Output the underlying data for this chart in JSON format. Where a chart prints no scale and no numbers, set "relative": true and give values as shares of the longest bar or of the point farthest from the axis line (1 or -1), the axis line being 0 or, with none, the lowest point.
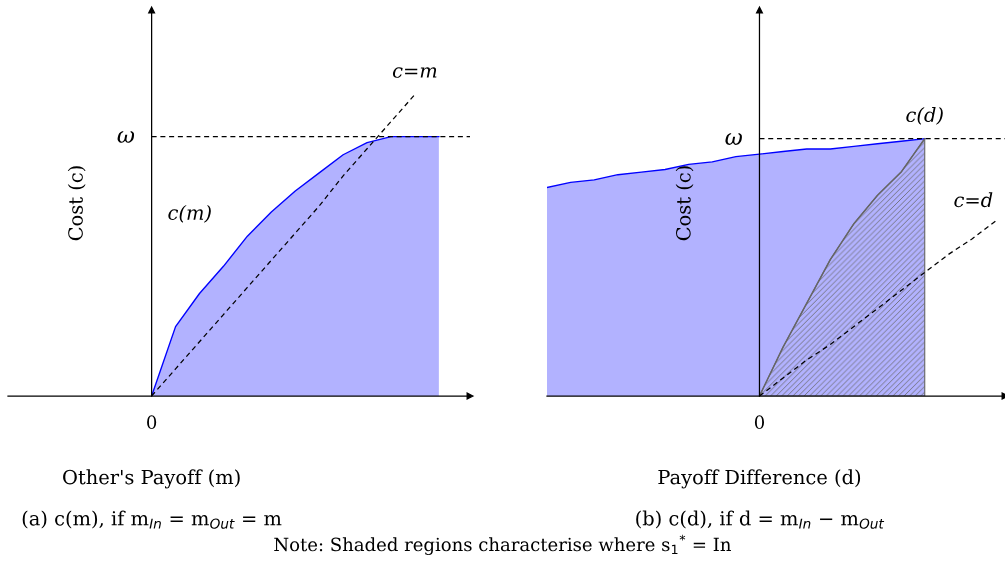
{
  "chart_data": [
    {
      "type": "area",
      "relative": true,
      "title": "(a) c(m), if m$_{In}$ = m$_{Out}$ = m",
      "xlabel": "Other's Payoff (m)",
      "ylabel": "Cost (c)",
      "categories": [
        null,
        null,
        null,
        null,
        null,
        null,
        null,
        null,
        null,
        null,
        null,
        null,
        null
      ],
      "series": [
        {
          "name": "c(m)",
          "color": "#0000ff",
          "values": [
            0,
            0.23,
            0.34,
            0.43,
            0.53,
            0.61,
            0.68,
            0.74,
            0.8,
            0.84,
            0.86,
            0.86,
            0.86
          ]
        },
        {
          "name": "c=m",
          "type": "line",
          "line_style": "dashed",
          "color": "#000000",
          "values": [
            0,
            0.09,
            0.18,
            0.27,
            0.36,
            0.45,
            0.54,
            0.63,
            0.73,
            0.82,
            0.91,
            1.0,
            null
          ]
        }
      ],
      "ref_lines": [
        {
          "axis": "y",
          "value": 0.86,
          "label": "ω",
          "color": "#000000",
          "line_style": "dashed"
        }
      ],
      "annotations": [
        "0",
        "Note: Shaded regions characterise where s$_{1}$$^{*}$ = In"
      ],
      "grid": false,
      "legend": false
    },
    {
      "type": "area",
      "relative": true,
      "title": "(b) c(d), if d = m$_{In}$ − m$_{Out}$",
      "xlabel": "Payoff Difference (d)",
      "ylabel": "Cost (c)",
      "categories": [
        null,
        null,
        null,
        null,
        null,
        null,
        null,
        null,
        null,
        null,
        null,
        null,
        null,
        null,
        null,
        null,
        null,
        null,
        null,
        null
      ],
      "series": [
        {
          "name": "c(d)",
          "color": "#0000ff",
          "values": [
            0.81,
            0.83,
            0.84,
            0.86,
            0.87,
            0.88,
            0.9,
            0.91,
            0.93,
            0.94,
            0.95,
            0.96,
            0.96,
            0.97,
            0.98,
            0.99,
            1.0,
            null,
            null,
            null
          ]
        },
        {
          "color": "#666666",
          "values": [
            null,
            null,
            null,
            null,
            null,
            null,
            null,
            null,
            null,
            0,
            0.19,
            0.36,
            0.53,
            0.67,
            0.78,
            0.87,
            1.0,
            null,
            null,
            null
          ]
        },
        {
          "name": "c=d",
          "type": "line",
          "line_style": "dashed",
          "color": "#000000",
          "values": [
            null,
            null,
            null,
            null,
            null,
            null,
            null,
            null,
            null,
            0,
            0.07,
            0.14,
            0.2,
            0.27,
            0.34,
            0.41,
            0.48,
            0.55,
            0.61,
            0.68
          ]
        }
      ],
      "ref_lines": [
        {
          "axis": "y",
          "value": 1.0,
          "label": "ω",
          "color": "#000000",
          "line_style": "dashed"
        }
      ],
      "annotations": [
        "0"
      ],
      "grid": false,
      "legend": false
    }
  ]
}
